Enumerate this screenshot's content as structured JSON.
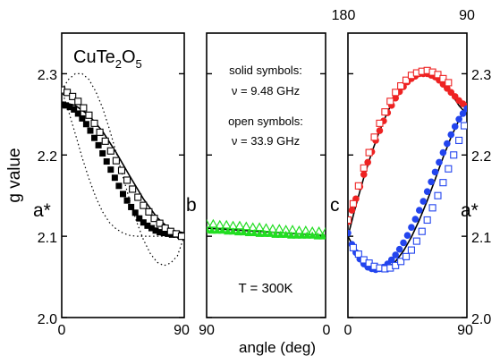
{
  "chart_data": [
    {
      "type": "scatter",
      "panel": "left",
      "title": "CuTe2O5",
      "title_main": "CuTe",
      "title_sub1": "2",
      "title_mid": "O",
      "title_sub2": "5",
      "ylabel": "g value",
      "xlim": [
        0,
        90
      ],
      "ylim": [
        2.0,
        2.35
      ],
      "x_ticks": [
        "0",
        "90"
      ],
      "y_ticks": [
        "2.0",
        "2.1",
        "2.2",
        "2.3"
      ],
      "left_axis_label": "a*",
      "right_axis_label": "b",
      "series": [
        {
          "marker": "filled-square",
          "color": "#000000",
          "x": [
            0,
            3,
            6,
            9,
            12,
            15,
            18,
            21,
            24,
            27,
            30,
            33,
            36,
            39,
            42,
            45,
            48,
            51,
            54,
            57,
            60,
            63,
            66,
            69,
            72,
            75,
            78,
            81,
            84,
            87,
            90
          ],
          "y": [
            2.262,
            2.261,
            2.259,
            2.256,
            2.251,
            2.245,
            2.238,
            2.23,
            2.221,
            2.212,
            2.202,
            2.192,
            2.182,
            2.172,
            2.162,
            2.152,
            2.144,
            2.136,
            2.129,
            2.122,
            2.117,
            2.113,
            2.11,
            2.107,
            2.105,
            2.104,
            2.103,
            2.102,
            2.102,
            2.101,
            2.101
          ]
        },
        {
          "marker": "open-square",
          "color": "#000000",
          "x": [
            0,
            4,
            8,
            12,
            16,
            20,
            24,
            28,
            32,
            36,
            40,
            44,
            48,
            52,
            56,
            60,
            64,
            68,
            72,
            76,
            80,
            84,
            88
          ],
          "y": [
            2.28,
            2.277,
            2.272,
            2.266,
            2.258,
            2.249,
            2.239,
            2.228,
            2.217,
            2.205,
            2.193,
            2.181,
            2.169,
            2.158,
            2.148,
            2.138,
            2.13,
            2.122,
            2.116,
            2.11,
            2.106,
            2.103,
            2.1
          ]
        }
      ],
      "fits": [
        {
          "style": "solid",
          "x": [
            0,
            10,
            20,
            30,
            40,
            50,
            60,
            70,
            80,
            90
          ],
          "y": [
            2.265,
            2.261,
            2.249,
            2.229,
            2.203,
            2.174,
            2.146,
            2.123,
            2.108,
            2.104
          ]
        },
        {
          "style": "dotted",
          "x": [
            0,
            5,
            10,
            15,
            20,
            25,
            30,
            35,
            40,
            45,
            50,
            55,
            60,
            65,
            70,
            75,
            80,
            85,
            90
          ],
          "y": [
            2.28,
            2.293,
            2.3,
            2.3,
            2.293,
            2.278,
            2.258,
            2.232,
            2.203,
            2.173,
            2.144,
            2.118,
            2.096,
            2.079,
            2.068,
            2.064,
            2.067,
            2.076,
            2.1
          ]
        },
        {
          "style": "dotted",
          "x": [
            0,
            5,
            10,
            15,
            20,
            25,
            30,
            35,
            40,
            45,
            50,
            55,
            60,
            65,
            70,
            75,
            80,
            85,
            90
          ],
          "y": [
            2.28,
            2.254,
            2.226,
            2.197,
            2.171,
            2.148,
            2.13,
            2.117,
            2.109,
            2.104,
            2.101,
            2.1,
            2.1,
            2.1,
            2.1,
            2.1,
            2.1,
            2.1,
            2.1
          ]
        }
      ]
    },
    {
      "type": "scatter",
      "panel": "middle",
      "xlim": [
        90,
        0
      ],
      "ylim": [
        2.0,
        2.35
      ],
      "x_ticks": [
        "90",
        "0"
      ],
      "xlabel": "angle (deg)",
      "annotations": {
        "solid_label": "solid symbols:",
        "solid_freq": "ν = 9.48 GHz",
        "open_label": "open symbols:",
        "open_freq": "ν = 33.9 GHz",
        "temperature": "T = 300K"
      },
      "series": [
        {
          "marker": "filled-triangle",
          "color": "#22dd22",
          "x": [
            90,
            86,
            82,
            78,
            74,
            70,
            66,
            62,
            58,
            54,
            50,
            46,
            42,
            38,
            34,
            30,
            26,
            22,
            18,
            14,
            10,
            6,
            2
          ],
          "y": [
            2.108,
            2.107,
            2.107,
            2.107,
            2.106,
            2.106,
            2.105,
            2.105,
            2.104,
            2.104,
            2.103,
            2.103,
            2.103,
            2.102,
            2.102,
            2.102,
            2.101,
            2.101,
            2.101,
            2.101,
            2.101,
            2.1,
            2.1
          ]
        },
        {
          "marker": "open-triangle",
          "color": "#22dd22",
          "x": [
            90,
            85,
            80,
            75,
            70,
            65,
            60,
            55,
            50,
            45,
            40,
            35,
            30,
            25,
            20,
            15,
            10,
            5,
            0
          ],
          "y": [
            2.115,
            2.115,
            2.114,
            2.114,
            2.113,
            2.113,
            2.112,
            2.111,
            2.111,
            2.11,
            2.109,
            2.109,
            2.108,
            2.108,
            2.107,
            2.107,
            2.106,
            2.106,
            2.105
          ]
        }
      ],
      "fits": [
        {
          "style": "solid",
          "x": [
            90,
            60,
            30,
            0
          ],
          "y": [
            2.11,
            2.107,
            2.104,
            2.101
          ]
        }
      ]
    },
    {
      "type": "scatter",
      "panel": "right",
      "xlim": [
        0,
        90
      ],
      "ylim": [
        2.0,
        2.35
      ],
      "x_ticks": [
        "0",
        "90"
      ],
      "top_ticks": [
        "180",
        "90"
      ],
      "y_ticks": [
        "2.0",
        "2.1",
        "2.2",
        "2.3"
      ],
      "left_axis_label": "c",
      "right_axis_label": "a*",
      "series": [
        {
          "marker": "filled-circle",
          "color": "#ee2222",
          "x": [
            0,
            3,
            6,
            9,
            12,
            15,
            18,
            21,
            24,
            27,
            30,
            33,
            36,
            39,
            42,
            45,
            48,
            51,
            54,
            57,
            60,
            63,
            66,
            69,
            72,
            75,
            78,
            81,
            84,
            87,
            90
          ],
          "y": [
            2.118,
            2.132,
            2.146,
            2.161,
            2.176,
            2.191,
            2.204,
            2.218,
            2.23,
            2.242,
            2.252,
            2.261,
            2.27,
            2.278,
            2.284,
            2.29,
            2.294,
            2.297,
            2.3,
            2.3,
            2.3,
            2.298,
            2.296,
            2.292,
            2.287,
            2.282,
            2.277,
            2.272,
            2.267,
            2.263,
            2.26
          ]
        },
        {
          "marker": "open-square",
          "color": "#ee2222",
          "x": [
            0,
            4,
            8,
            12,
            16,
            20,
            24,
            28,
            32,
            36,
            40,
            44,
            48,
            52,
            56,
            60,
            64,
            68,
            72,
            76
          ],
          "y": [
            2.12,
            2.14,
            2.162,
            2.184,
            2.203,
            2.222,
            2.239,
            2.253,
            2.266,
            2.277,
            2.285,
            2.292,
            2.298,
            2.301,
            2.303,
            2.304,
            2.302,
            2.299,
            2.294,
            2.289
          ]
        },
        {
          "marker": "filled-circle",
          "color": "#2244ee",
          "x": [
            0,
            3,
            6,
            9,
            12,
            15,
            18,
            21,
            24,
            27,
            30,
            33,
            36,
            39,
            42,
            45,
            48,
            51,
            54,
            57,
            60,
            63,
            66,
            69,
            72,
            75,
            78,
            81,
            84,
            87,
            90
          ],
          "y": [
            2.104,
            2.09,
            2.08,
            2.072,
            2.066,
            2.062,
            2.06,
            2.059,
            2.06,
            2.062,
            2.066,
            2.071,
            2.077,
            2.084,
            2.092,
            2.101,
            2.111,
            2.121,
            2.132,
            2.143,
            2.155,
            2.167,
            2.179,
            2.191,
            2.203,
            2.214,
            2.225,
            2.235,
            2.244,
            2.251,
            2.257
          ]
        },
        {
          "marker": "open-square",
          "color": "#2244ee",
          "x": [
            4,
            8,
            12,
            16,
            20,
            24,
            28,
            32,
            36,
            40,
            44,
            48,
            52,
            56,
            60,
            64,
            68,
            72,
            76,
            80,
            84,
            88
          ],
          "y": [
            2.086,
            2.078,
            2.071,
            2.067,
            2.063,
            2.061,
            2.06,
            2.061,
            2.064,
            2.069,
            2.075,
            2.083,
            2.094,
            2.106,
            2.12,
            2.135,
            2.15,
            2.166,
            2.183,
            2.2,
            2.218,
            2.236
          ]
        }
      ],
      "fits": [
        {
          "style": "solid",
          "x": [
            0,
            6,
            12,
            18,
            24,
            30,
            36,
            42,
            48,
            54,
            60,
            66,
            72,
            78,
            84,
            90
          ],
          "y": [
            2.1,
            2.138,
            2.172,
            2.203,
            2.23,
            2.253,
            2.272,
            2.287,
            2.297,
            2.302,
            2.302,
            2.298,
            2.289,
            2.276,
            2.261,
            2.25
          ]
        },
        {
          "style": "solid",
          "x": [
            0,
            6,
            12,
            18,
            24,
            30,
            36,
            42,
            48,
            54,
            60,
            66,
            72,
            78,
            84,
            90
          ],
          "y": [
            2.1,
            2.081,
            2.068,
            2.06,
            2.058,
            2.061,
            2.069,
            2.082,
            2.099,
            2.12,
            2.144,
            2.17,
            2.197,
            2.222,
            2.243,
            2.26
          ]
        }
      ]
    }
  ]
}
